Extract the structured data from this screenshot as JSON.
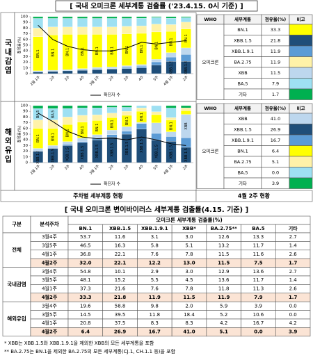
{
  "header": {
    "title": "[ 국내 오미크론 세부계통 검출률 ('23.4.15. 0시 기준) ]"
  },
  "sections": [
    {
      "label": "국내감염",
      "chart": {
        "type": "stacked_bar",
        "y_label": "점유율(%)",
        "ylim": [
          0,
          100
        ],
        "yticks": [
          0,
          10,
          20,
          30,
          40,
          50,
          60,
          70,
          80,
          90,
          100
        ],
        "categories": [
          "2월 1주",
          "2주",
          "3주",
          "4주",
          "3월 1주",
          "2주",
          "3주",
          "4주",
          "5주",
          "4월 1주",
          "2주"
        ],
        "series": [
          {
            "name": "XBB.1.5",
            "color": "#1f4e79",
            "values": [
              3,
              4,
              5,
              6,
              7,
              8,
              9,
              10.1,
              15.2,
              21.6,
              21.8
            ]
          },
          {
            "name": "XBB.1.9.1",
            "color": "#5b9bd5",
            "values": [
              0,
              0,
              0,
              1,
              1,
              1,
              2,
              2.9,
              5.5,
              7.6,
              11.9
            ]
          },
          {
            "name": "XBB",
            "color": "#bdd7ee",
            "values": [
              2,
              2,
              2,
              2,
              3,
              3,
              3,
              3.0,
              4.5,
              7.8,
              11.5
            ]
          },
          {
            "name": "BN.1",
            "color": "#ffff00",
            "values": [
              60,
              62,
              62,
              60,
              58,
              57,
              56,
              54.8,
              48.1,
              37.3,
              33.3
            ]
          },
          {
            "name": "BA.2.75",
            "color": "#fff2a8",
            "values": [
              15,
              14,
              13,
              13,
              13,
              13,
              13,
              12.9,
              13.6,
              11.8,
              11.9
            ]
          },
          {
            "name": "BA.5",
            "color": "#9ee0f2",
            "values": [
              17,
              15,
              15,
              15,
              15,
              15,
              14,
              13.6,
              11.7,
              11.3,
              7.9
            ]
          },
          {
            "name": "기타",
            "color": "#00b050",
            "values": [
              3,
              3,
              3,
              3,
              3,
              3,
              3,
              2.7,
              1.4,
              2.6,
              1.7
            ]
          }
        ],
        "line": {
          "name": "확진자 수",
          "color": "#000000",
          "values": [
            85,
            60,
            48,
            42,
            40,
            40,
            45,
            55,
            52,
            55,
            58
          ]
        }
      },
      "table": {
        "headers": [
          "WHO",
          "세부계통",
          "점유율(%)",
          "비고"
        ],
        "who": "오미크론",
        "rows": [
          {
            "name": "BN.1",
            "share": "33.3"
          },
          {
            "name": "XBB.1.5",
            "share": "21.8"
          },
          {
            "name": "XBB.1.9.1",
            "share": "11.9"
          },
          {
            "name": "BA.2.75",
            "share": "11.9"
          },
          {
            "name": "XBB",
            "share": "11.5"
          },
          {
            "name": "BA.5",
            "share": "7.9"
          },
          {
            "name": "기타",
            "share": "1.7"
          }
        ]
      }
    },
    {
      "label": "해외유입",
      "chart": {
        "type": "stacked_bar",
        "y_label": "점유율(%)",
        "ylim": [
          0,
          100
        ],
        "yticks": [
          0,
          10,
          20,
          30,
          40,
          50,
          60,
          70,
          80,
          90,
          100
        ],
        "categories": [
          "2월 1주",
          "2주",
          "3주",
          "4주",
          "3월 1주",
          "2주",
          "3주",
          "4주",
          "5주",
          "4월 1주",
          "2주"
        ],
        "series": [
          {
            "name": "XBB.1.5",
            "color": "#1f4e79",
            "values": [
              20,
              25,
              30,
              35,
              40,
              45,
              50,
              58.8,
              39.5,
              37.5,
              26.9
            ]
          },
          {
            "name": "XBB.1.9.1",
            "color": "#5b9bd5",
            "values": [
              0,
              0,
              2,
              2,
              3,
              4,
              5,
              9.8,
              11.8,
              8.3,
              16.7
            ]
          },
          {
            "name": "XBB",
            "color": "#bdd7ee",
            "values": [
              5,
              5,
              5,
              6,
              6,
              8,
              8,
              2.0,
              18.4,
              8.3,
              41.0
            ]
          },
          {
            "name": "BN.1",
            "color": "#ffff00",
            "values": [
              35,
              30,
              30,
              28,
              25,
              22,
              20,
              19.6,
              14.5,
              20.8,
              6.4
            ]
          },
          {
            "name": "BA.2.75",
            "color": "#fff2a8",
            "values": [
              15,
              15,
              13,
              12,
              10,
              8,
              7,
              5.9,
              5.2,
              4.2,
              5.1
            ]
          },
          {
            "name": "BA.5",
            "color": "#9ee0f2",
            "values": [
              20,
              20,
              15,
              13,
              12,
              10,
              7,
              3.9,
              10.6,
              16.7,
              0.0
            ]
          },
          {
            "name": "기타",
            "color": "#00b050",
            "values": [
              5,
              5,
              5,
              4,
              4,
              3,
              3,
              0.0,
              0.0,
              4.2,
              3.9
            ]
          }
        ],
        "line": {
          "name": "확진자 수",
          "color": "#000000",
          "values": [
            87,
            72,
            55,
            45,
            42,
            43,
            40,
            45,
            40,
            33,
            30
          ]
        }
      },
      "table": {
        "headers": [
          "WHO",
          "세부계통",
          "점유율(%)",
          "비고"
        ],
        "who": "오미크론",
        "rows": [
          {
            "name": "XBB",
            "share": "41.0"
          },
          {
            "name": "XBB.1.5",
            "share": "26.9"
          },
          {
            "name": "XBB.1.9.1",
            "share": "16.7"
          },
          {
            "name": "BN.1",
            "share": "6.4"
          },
          {
            "name": "BA.2.75",
            "share": "5.1"
          },
          {
            "name": "BA.5",
            "share": "0.0"
          },
          {
            "name": "기타",
            "share": "3.9"
          }
        ]
      }
    }
  ],
  "captions": [
    "주차별 세부계통 현황",
    "4월 2주 현황"
  ],
  "table_title": "[ 국내 오미크론 변이바이러스 세부계통 검출률(4.15. 기준) ]",
  "table": {
    "headers": [
      "구분",
      "분석주차"
    ],
    "group_header": "오미크론 세부계통 검출률(%)",
    "columns": [
      "BN.1",
      "XBB.1.5",
      "XBB.1.9.1",
      "XBB*",
      "BA.2.75**",
      "BA.5",
      "기타"
    ],
    "groups": [
      {
        "name": "전체",
        "rows": [
          {
            "week": "3월4주",
            "values": [
              "53.7",
              "11.6",
              "3.1",
              "3.0",
              "12.6",
              "13.3",
              "2.7"
            ]
          },
          {
            "week": "3월5주",
            "values": [
              "46.5",
              "16.3",
              "5.8",
              "5.1",
              "13.2",
              "11.7",
              "1.4"
            ]
          },
          {
            "week": "4월1주",
            "values": [
              "36.8",
              "22.1",
              "7.6",
              "7.8",
              "11.5",
              "11.6",
              "2.6"
            ]
          },
          {
            "week": "4월2주",
            "values": [
              "32.0",
              "22.1",
              "12.2",
              "13.0",
              "11.5",
              "7.5",
              "1.7"
            ]
          }
        ]
      },
      {
        "name": "국내감염",
        "rows": [
          {
            "week": "3월4주",
            "values": [
              "54.8",
              "10.1",
              "2.9",
              "3.0",
              "12.9",
              "13.6",
              "2.7"
            ]
          },
          {
            "week": "3월5주",
            "values": [
              "48.1",
              "15.2",
              "5.5",
              "4.5",
              "13.6",
              "11.7",
              "1.4"
            ]
          },
          {
            "week": "4월1주",
            "values": [
              "37.3",
              "21.6",
              "7.6",
              "7.8",
              "11.8",
              "11.3",
              "2.6"
            ]
          },
          {
            "week": "4월2주",
            "values": [
              "33.3",
              "21.8",
              "11.9",
              "11.5",
              "11.9",
              "7.9",
              "1.7"
            ]
          }
        ]
      },
      {
        "name": "해외유입",
        "rows": [
          {
            "week": "3월4주",
            "values": [
              "19.6",
              "58.8",
              "9.8",
              "2.0",
              "5.9",
              "3.9",
              "0.0"
            ]
          },
          {
            "week": "3월5주",
            "values": [
              "14.5",
              "39.5",
              "11.8",
              "18.4",
              "5.2",
              "10.6",
              "0.0"
            ]
          },
          {
            "week": "4월1주",
            "values": [
              "20.8",
              "37.5",
              "8.3",
              "8.3",
              "4.2",
              "16.7",
              "4.2"
            ]
          },
          {
            "week": "4월2주",
            "values": [
              "6.4",
              "26.9",
              "16.7",
              "41.0",
              "5.1",
              "0.0",
              "3.9"
            ]
          }
        ]
      }
    ]
  },
  "footnotes": [
    "* XBB는 XBB.1.5와 XBB.1.9.1을 제외한 XBB의 모든 세부계통을 포함",
    "** BA.2.75는 BN.1을 제외한 BA.2.75의 모든 세부계통(CJ.1, CH.1.1 등)을 포함"
  ]
}
